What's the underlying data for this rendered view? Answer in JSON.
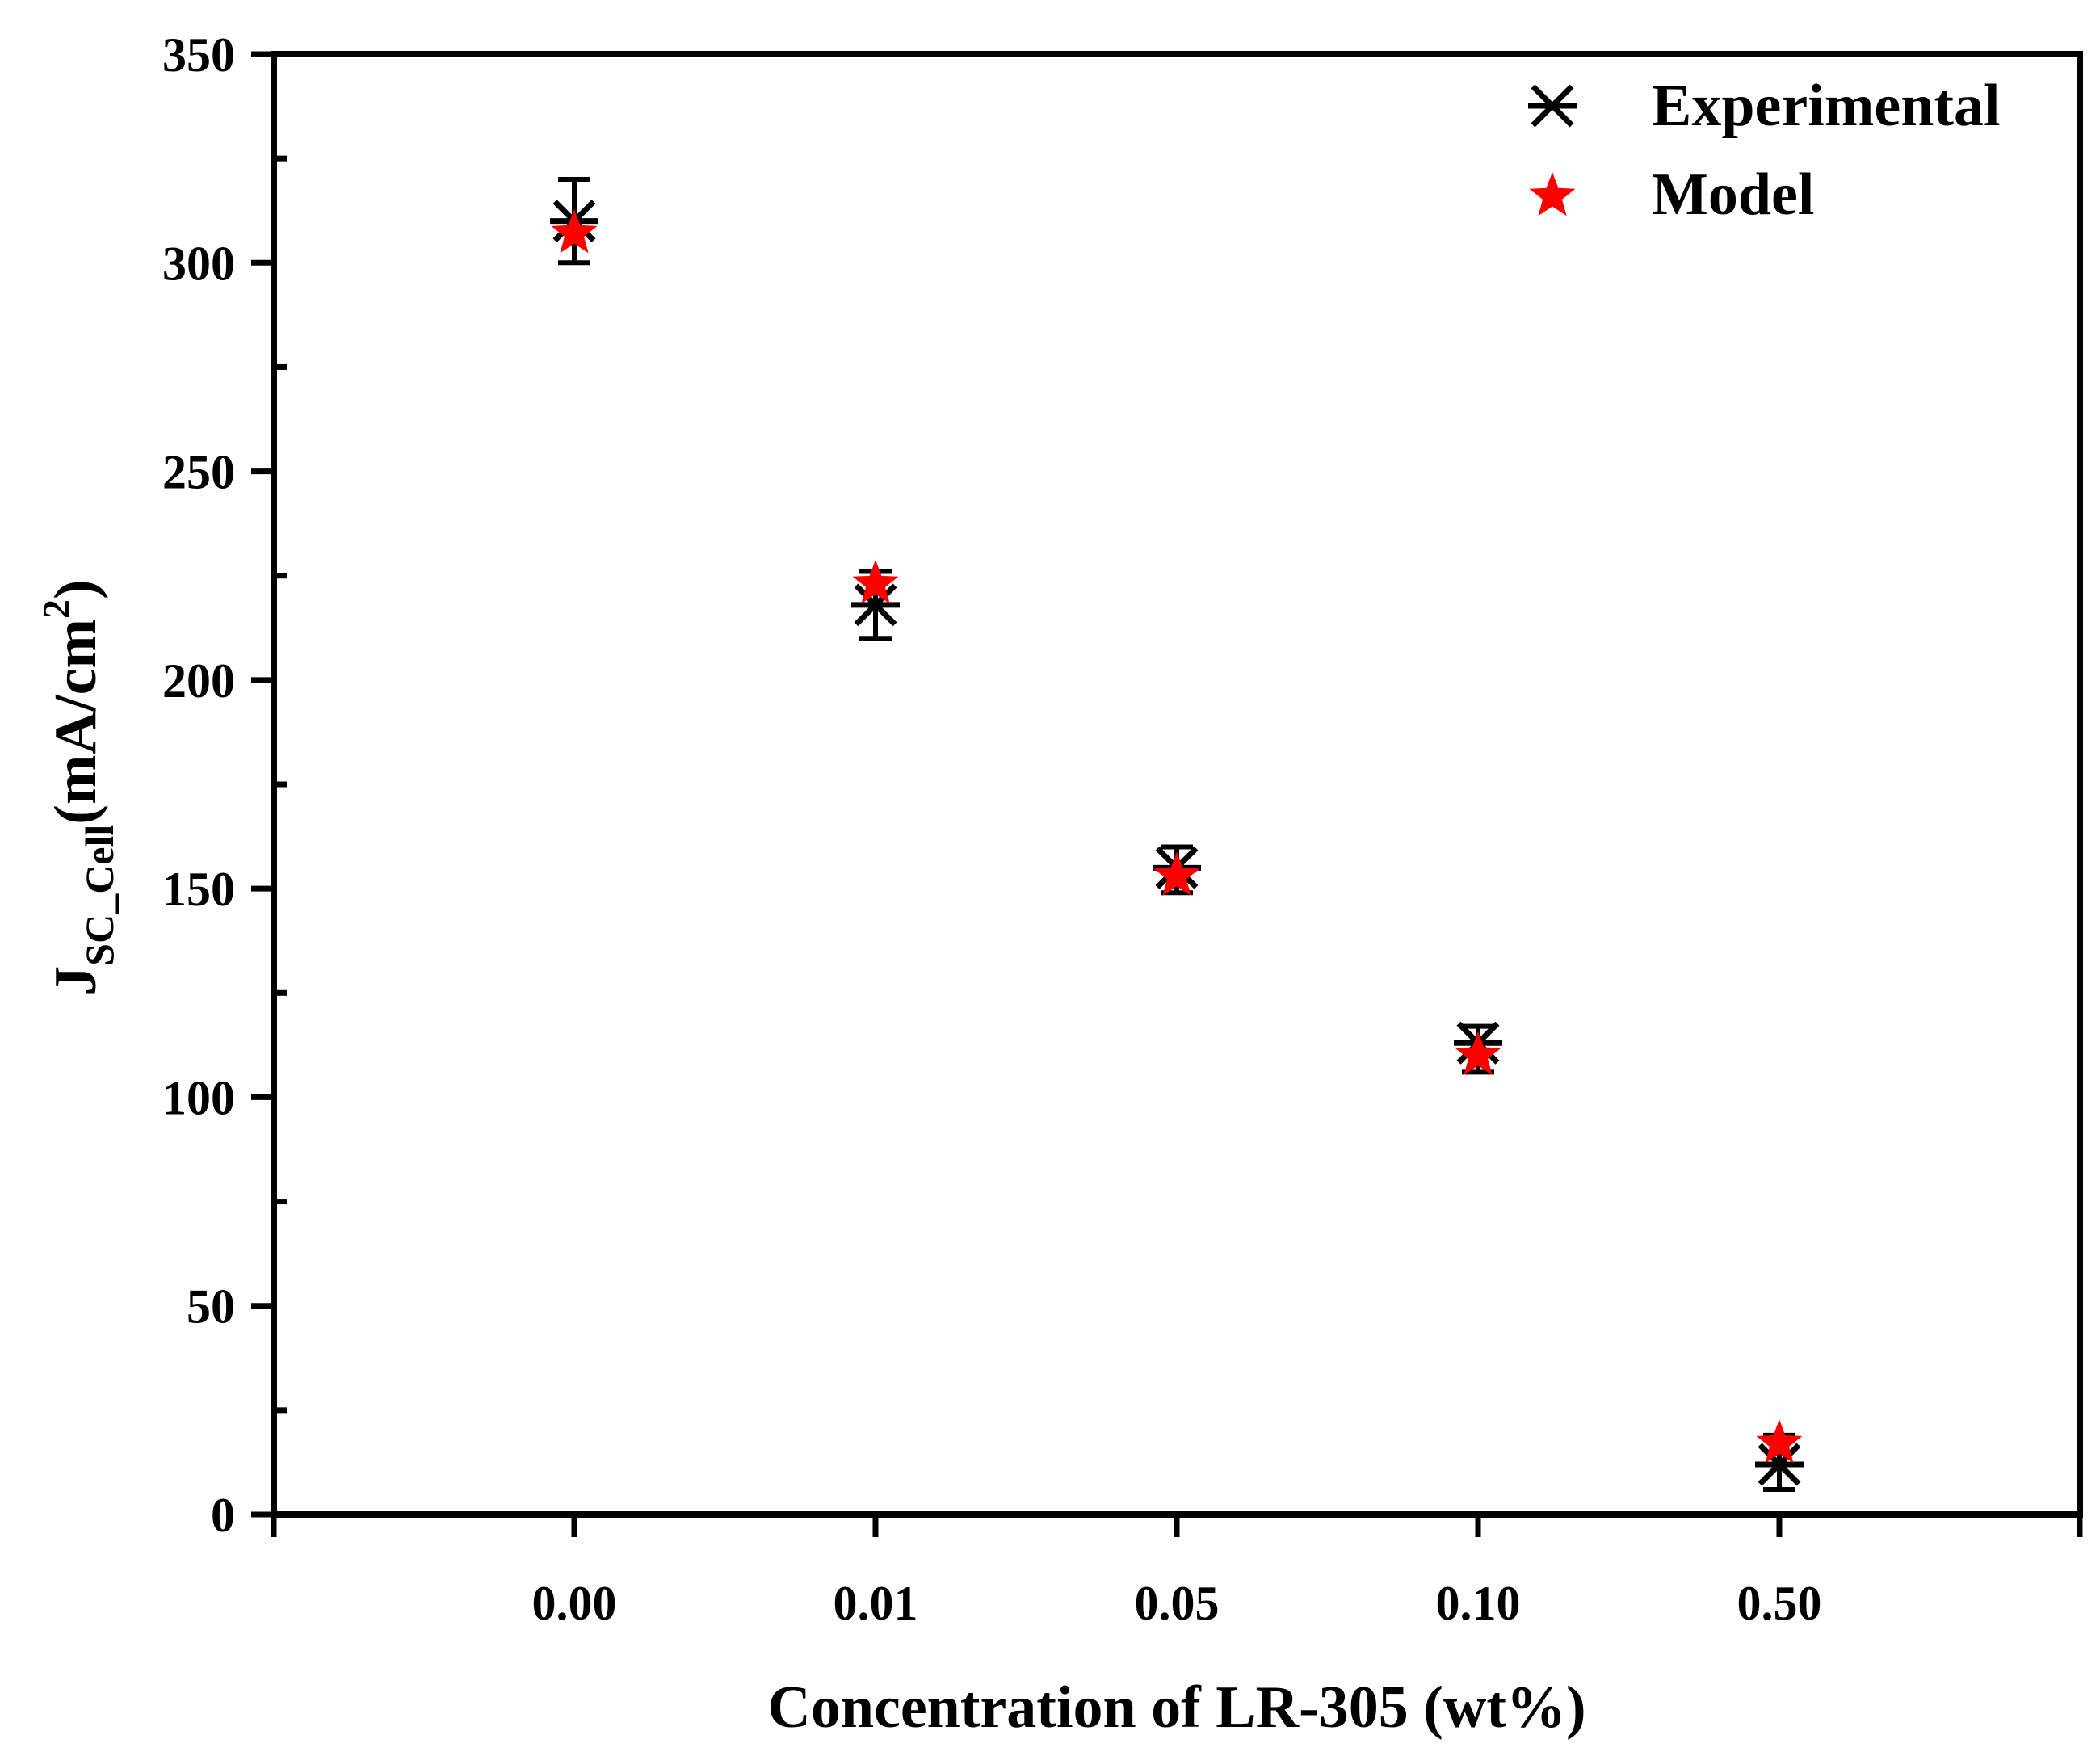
{
  "chart_data": {
    "type": "scatter",
    "title": "",
    "xlabel": "Concentration of LR-305 (wt%)",
    "ylabel": {
      "main": "J",
      "subscript": "SC_Cell",
      "unit_prefix": "(mA/cm",
      "unit_superscript": "2",
      "unit_suffix": ")"
    },
    "categories": [
      "0.00",
      "0.01",
      "0.05",
      "0.10",
      "0.50"
    ],
    "ylim": [
      0,
      350
    ],
    "y_major_ticks": [
      0,
      50,
      100,
      150,
      200,
      250,
      300,
      350
    ],
    "y_tick_labels": [
      "0",
      "50",
      "100",
      "150",
      "200",
      "250",
      "300",
      "350"
    ],
    "y_minor_step": 25,
    "legend_position": "top-right",
    "series": [
      {
        "name": "Experimental",
        "marker": "asterisk",
        "color": "#000000",
        "values": [
          310,
          218,
          155,
          113,
          12
        ],
        "error_low": [
          300,
          210,
          149,
          106,
          6
        ],
        "error_high": [
          320,
          226,
          160,
          117,
          19
        ]
      },
      {
        "name": "Model",
        "marker": "star",
        "color": "#ff0000",
        "values": [
          307,
          223,
          153,
          110,
          17
        ]
      }
    ]
  }
}
